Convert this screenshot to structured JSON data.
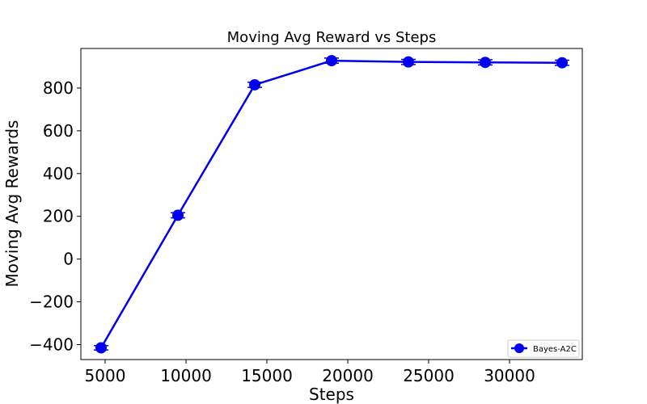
{
  "chart_data": {
    "type": "line",
    "title": "Moving Avg Reward vs Steps",
    "xlabel": "Steps",
    "ylabel": "Moving Avg Rewards",
    "xlim": [
      3500,
      34500
    ],
    "ylim": [
      -470,
      985
    ],
    "xticks": [
      5000,
      10000,
      15000,
      20000,
      25000,
      30000
    ],
    "xtick_labels": [
      "5000",
      "10000",
      "15000",
      "20000",
      "25000",
      "30000"
    ],
    "yticks": [
      -400,
      -200,
      0,
      200,
      400,
      600,
      800
    ],
    "ytick_labels": [
      "−400",
      "−200",
      "0",
      "200",
      "400",
      "600",
      "800"
    ],
    "grid": false,
    "legend_position": "lower-right",
    "series": [
      {
        "name": "Bayes-A2C",
        "color": "#0000ee",
        "marker": "circle",
        "x": [
          4750,
          9500,
          14250,
          19000,
          23750,
          28500,
          33250
        ],
        "y": [
          -415,
          205,
          815,
          928,
          922,
          920,
          918
        ],
        "error": [
          10,
          12,
          12,
          12,
          12,
          12,
          12
        ]
      }
    ]
  }
}
